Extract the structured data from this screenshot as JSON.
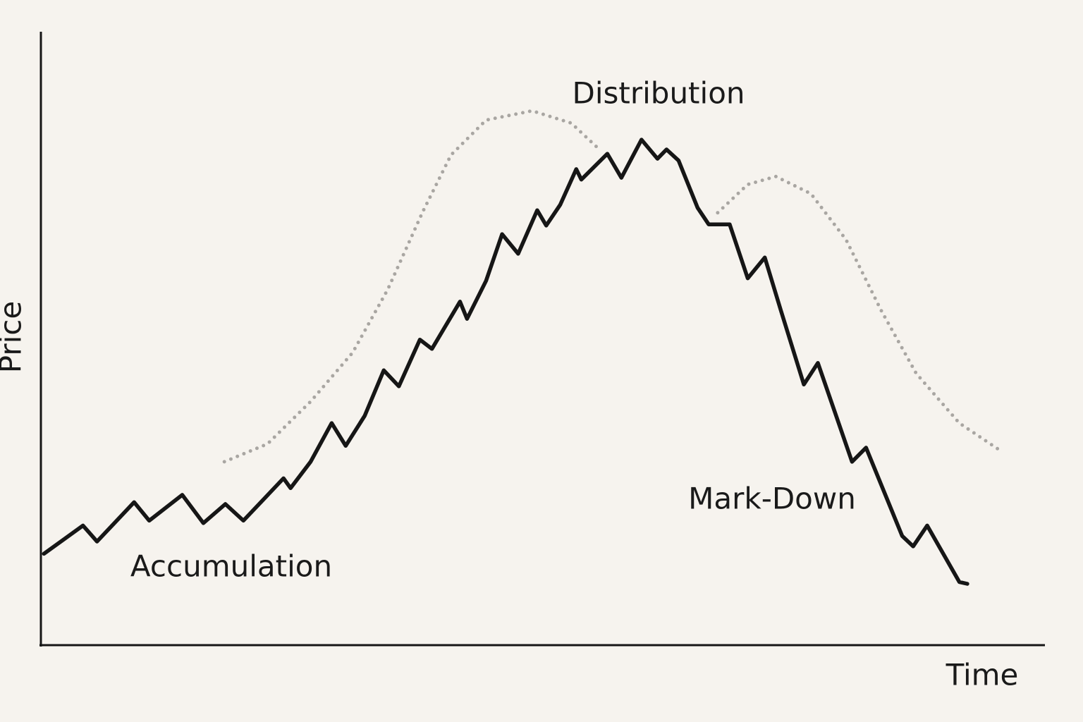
{
  "chart_data": {
    "type": "line",
    "x_label": "Time",
    "y_label": "Price",
    "annotations": [
      "Distribution",
      "Accumulation",
      "Mark-Down"
    ],
    "xlim": [
      0,
      100
    ],
    "ylim": [
      0,
      100
    ],
    "series": [
      {
        "color": "#161616",
        "style": "solid",
        "x": [
          0.3,
          4.2,
          5.6,
          9.3,
          10.8,
          14.1,
          16.2,
          18.4,
          20.2,
          24.2,
          24.9,
          26.9,
          29.0,
          30.4,
          32.3,
          34.2,
          35.7,
          37.8,
          39.0,
          41.8,
          42.5,
          44.4,
          46.0,
          47.6,
          49.5,
          50.4,
          51.8,
          53.4,
          53.9,
          56.5,
          57.9,
          59.9,
          61.5,
          62.4,
          63.6,
          65.5,
          66.6,
          68.7,
          70.5,
          72.2,
          73.8,
          76.1,
          77.5,
          80.9,
          82.3,
          85.9,
          87.0,
          88.4,
          91.6,
          92.4
        ],
        "values": [
          14.9,
          19.5,
          16.9,
          23.3,
          20.3,
          24.5,
          19.9,
          23.0,
          20.3,
          27.2,
          25.6,
          29.9,
          36.2,
          32.5,
          37.4,
          44.8,
          42.2,
          49.8,
          48.3,
          56.0,
          53.2,
          59.4,
          67.0,
          63.8,
          70.9,
          68.4,
          71.8,
          77.6,
          75.9,
          80.1,
          76.2,
          82.4,
          79.3,
          80.8,
          79.0,
          71.3,
          68.6,
          68.6,
          59.8,
          63.2,
          54.6,
          42.5,
          46.0,
          29.9,
          32.2,
          17.8,
          16.1,
          19.5,
          10.3,
          10.0
        ]
      },
      {
        "color": "#a9a6a2",
        "style": "dotted",
        "x": [
          18.3,
          22.6,
          26.9,
          31.1,
          34.6,
          38.1,
          40.9,
          44.4,
          49.0,
          52.9,
          55.7
        ],
        "values": [
          29.9,
          32.8,
          39.7,
          47.7,
          58.0,
          70.7,
          79.9,
          85.6,
          87.1,
          85.1,
          80.8
        ]
      },
      {
        "color": "#a9a6a2",
        "style": "dotted",
        "x": [
          67.5,
          70.5,
          73.3,
          76.8,
          80.3,
          83.8,
          87.3,
          91.6,
          95.8
        ],
        "values": [
          70.5,
          75.1,
          76.4,
          73.6,
          66.1,
          54.6,
          44.3,
          36.2,
          31.6
        ]
      }
    ]
  }
}
